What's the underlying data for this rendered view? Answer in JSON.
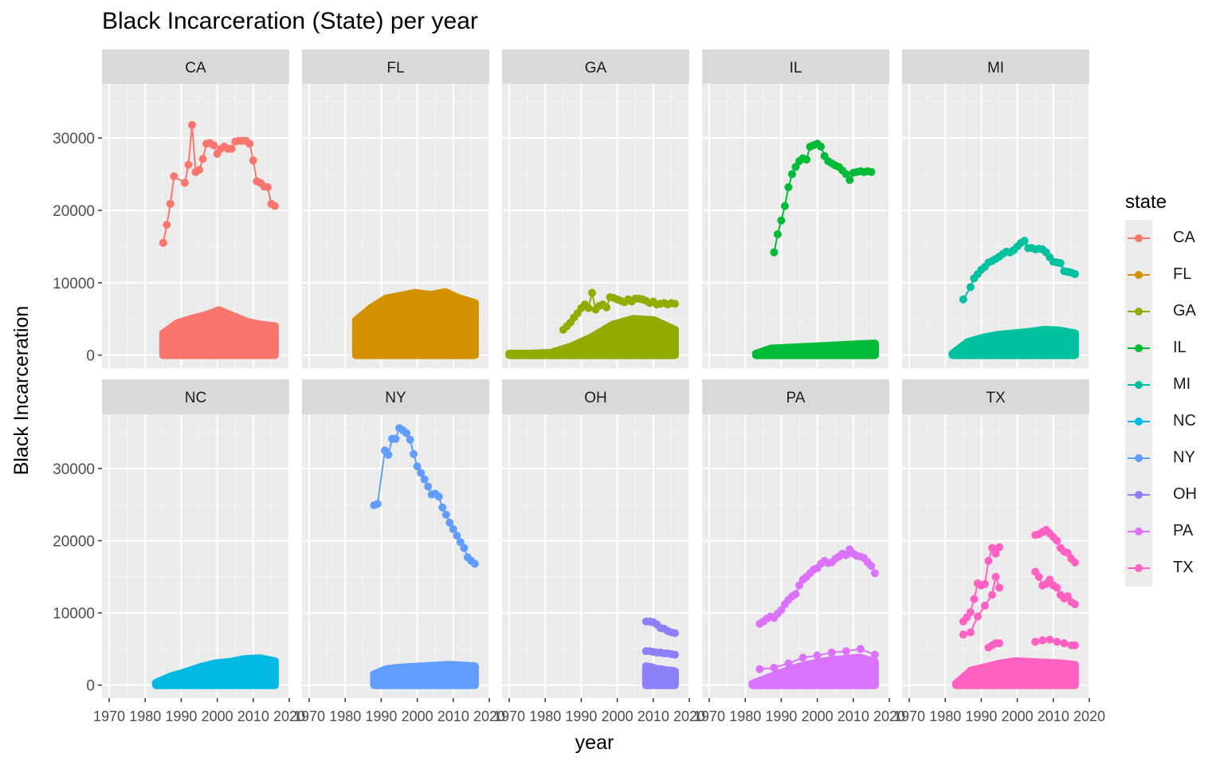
{
  "chart_data": {
    "type": "line",
    "title": "Black Incarceration (State) per year",
    "xlabel": "year",
    "ylabel": "Black Incarceration",
    "xlim": [
      1968,
      2020
    ],
    "ylim": [
      -1800,
      37500
    ],
    "x_ticks": [
      1970,
      1980,
      1990,
      2000,
      2010,
      2020
    ],
    "x_tick_labels": [
      "1970",
      "1980",
      "1990",
      "2000",
      "2010",
      "2020"
    ],
    "y_ticks": [
      0,
      10000,
      20000,
      30000
    ],
    "y_tick_labels": [
      "0",
      "10000",
      "20000",
      "30000"
    ],
    "legend_title": "state",
    "legend_position": "right",
    "panels": [
      "CA",
      "FL",
      "GA",
      "IL",
      "MI",
      "NC",
      "NY",
      "OH",
      "PA",
      "TX"
    ],
    "colors": {
      "CA": "#F8766D",
      "FL": "#D39200",
      "GA": "#93AA00",
      "IL": "#00BA38",
      "MI": "#00C19F",
      "NC": "#00B9E3",
      "NY": "#619CFF",
      "OH": "#8B80F8",
      "PA": "#DB72FB",
      "TX": "#FF61C3"
    },
    "series": [
      {
        "name": "CA",
        "lines": [
          {
            "x": [
              1985,
              1986,
              1987,
              1988,
              1991,
              1992,
              1993,
              1994,
              1995,
              1996,
              1997,
              1998,
              1999,
              2000,
              2001,
              2002,
              2003,
              2004,
              2005,
              2006,
              2007,
              2008,
              2009,
              2010,
              2011,
              2012,
              2013,
              2014,
              2015,
              2016
            ],
            "y": [
              15500,
              18000,
              20900,
              24700,
              23800,
              26300,
              31800,
              25300,
              25600,
              27100,
              29200,
              29300,
              29000,
              27800,
              28500,
              28800,
              28500,
              28500,
              29500,
              29600,
              29600,
              29600,
              29200,
              26900,
              24000,
              23800,
              23300,
              23200,
              20900,
              20600
            ]
          }
        ],
        "band": {
          "x": [
            1985,
            2016
          ],
          "min": 0,
          "top": [
            3000,
            4400,
            5000,
            5500,
            6200,
            5400,
            4600,
            4200,
            4000
          ]
        }
      },
      {
        "name": "FL",
        "lines": [],
        "band": {
          "x": [
            1983,
            2016
          ],
          "min": 0,
          "top": [
            4800,
            6500,
            7800,
            8200,
            8600,
            8300,
            8700,
            7800,
            7200
          ]
        }
      },
      {
        "name": "GA",
        "lines": [
          {
            "x": [
              1985,
              1986,
              1987,
              1988,
              1989,
              1990,
              1991,
              1992,
              1993,
              1994,
              1995,
              1996,
              1997,
              1998,
              1999,
              2000,
              2001,
              2002,
              2003,
              2004,
              2005,
              2006,
              2007,
              2008,
              2009,
              2010,
              2011,
              2012,
              2013,
              2014,
              2015,
              2016
            ],
            "y": [
              3500,
              4000,
              4500,
              5200,
              5800,
              6500,
              7000,
              6500,
              8600,
              6300,
              6800,
              7000,
              6600,
              8000,
              7900,
              7700,
              7500,
              7300,
              7700,
              7400,
              7800,
              7800,
              7700,
              7500,
              7200,
              7400,
              7000,
              7100,
              7200,
              7000,
              7200,
              7100
            ]
          }
        ],
        "band": {
          "x": [
            1970,
            2016
          ],
          "min": 0,
          "top": [
            200,
            200,
            300,
            1200,
            2500,
            4200,
            5000,
            4800,
            3500
          ]
        }
      },
      {
        "name": "IL",
        "lines": [
          {
            "x": [
              1988,
              1989,
              1990,
              1991,
              1992,
              1993,
              1994,
              1995,
              1996,
              1997,
              1998,
              1999,
              2000,
              2001,
              2002,
              2003,
              2004,
              2005,
              2006,
              2007,
              2008,
              2009,
              2010,
              2011,
              2012,
              2013,
              2014,
              2015
            ],
            "y": [
              14200,
              16700,
              18600,
              20600,
              23200,
              25000,
              26000,
              26800,
              27200,
              27000,
              28800,
              29000,
              29200,
              28800,
              27500,
              26800,
              26500,
              26200,
              26000,
              25500,
              25000,
              24200,
              25200,
              25300,
              25400,
              25300,
              25400,
              25300
            ]
          }
        ],
        "band": {
          "x": [
            1983,
            2016
          ],
          "min": 0,
          "top": [
            200,
            900,
            1000,
            1100,
            1200,
            1300,
            1400,
            1500,
            1600
          ]
        }
      },
      {
        "name": "MI",
        "lines": [
          {
            "x": [
              1985,
              1987,
              1988,
              1989,
              1990,
              1991,
              1992,
              1993,
              1994,
              1995,
              1996,
              1997,
              1998,
              1999,
              2000,
              2001,
              2002,
              2003,
              2004,
              2005,
              2006,
              2007,
              2008,
              2009,
              2010,
              2011,
              2012,
              2013,
              2014,
              2015,
              2016
            ],
            "y": [
              7700,
              9400,
              10600,
              11200,
              11800,
              12200,
              12800,
              13000,
              13300,
              13600,
              14000,
              14300,
              14200,
              14500,
              15000,
              15500,
              15800,
              14800,
              14800,
              14600,
              14700,
              14600,
              14200,
              13500,
              12900,
              12800,
              12700,
              11600,
              11500,
              11400,
              11200
            ]
          }
        ],
        "band": {
          "x": [
            1982,
            2016
          ],
          "min": 0,
          "top": [
            200,
            1800,
            2400,
            2800,
            3000,
            3200,
            3500,
            3400,
            3000
          ]
        }
      },
      {
        "name": "NC",
        "lines": [],
        "band": {
          "x": [
            1983,
            2016
          ],
          "min": 0,
          "top": [
            300,
            1200,
            1800,
            2500,
            3000,
            3200,
            3600,
            3700,
            3300
          ]
        }
      },
      {
        "name": "NY",
        "lines": [
          {
            "x": [
              1988,
              1989,
              1991,
              1992,
              1993,
              1994,
              1995,
              1996,
              1997,
              1998,
              1999,
              2000,
              2001,
              2002,
              2003,
              2004,
              2005,
              2006,
              2007,
              2008,
              2009,
              2010,
              2011,
              2012,
              2013,
              2014,
              2015,
              2016
            ],
            "y": [
              24900,
              25100,
              32500,
              31900,
              34100,
              34100,
              35600,
              35300,
              34900,
              34000,
              32000,
              30300,
              29400,
              28500,
              27500,
              26400,
              26500,
              26100,
              24600,
              23600,
              22500,
              21600,
              20700,
              19800,
              19000,
              17700,
              17200,
              16800
            ]
          }
        ],
        "band": {
          "x": [
            1988,
            2016
          ],
          "min": 0,
          "top": [
            1500,
            2200,
            2400,
            2500,
            2600,
            2700,
            2800,
            2700,
            2600
          ]
        }
      },
      {
        "name": "OH",
        "lines": [
          {
            "x": [
              2008,
              2009,
              2010,
              2011,
              2012,
              2013,
              2014,
              2015,
              2016
            ],
            "y": [
              8800,
              8800,
              8700,
              8400,
              7900,
              7800,
              7500,
              7300,
              7200
            ]
          },
          {
            "x": [
              2008,
              2009,
              2010,
              2011,
              2012,
              2013,
              2014,
              2015,
              2016
            ],
            "y": [
              4700,
              4700,
              4600,
              4500,
              4500,
              4400,
              4400,
              4300,
              4200
            ]
          }
        ],
        "band": {
          "x": [
            2008,
            2016
          ],
          "min": 0,
          "top": [
            2600,
            2500,
            2400,
            2200,
            2200,
            2100,
            2000,
            2000,
            1900
          ]
        }
      },
      {
        "name": "PA",
        "lines": [
          {
            "x": [
              1984,
              1985,
              1986,
              1987,
              1988,
              1989,
              1990,
              1991,
              1992,
              1993,
              1994,
              1995,
              1996,
              1997,
              1998,
              1999,
              2000,
              2001,
              2002,
              2003,
              2004,
              2005,
              2006,
              2007,
              2008,
              2009,
              2010,
              2011,
              2012,
              2013,
              2014,
              2015,
              2016
            ],
            "y": [
              8500,
              8800,
              9200,
              9500,
              9300,
              9900,
              10400,
              11200,
              11800,
              12300,
              12600,
              13800,
              14600,
              15000,
              15500,
              16000,
              16200,
              16800,
              17200,
              16900,
              17000,
              17500,
              17800,
              18200,
              18000,
              18800,
              18200,
              17900,
              17800,
              17600,
              17000,
              16500,
              15500
            ]
          },
          {
            "x": [
              1984,
              1988,
              1992,
              1996,
              2000,
              2004,
              2008,
              2012,
              2016
            ],
            "y": [
              2200,
              2400,
              3000,
              3800,
              4100,
              4500,
              4700,
              5000,
              4200
            ]
          }
        ],
        "band": {
          "x": [
            1982,
            2016
          ],
          "min": 0,
          "top": [
            200,
            1000,
            1800,
            2500,
            3000,
            3400,
            3600,
            3800,
            3200
          ]
        }
      },
      {
        "name": "TX",
        "lines": [
          {
            "x": [
              1985,
              1986,
              1987,
              1988,
              1989,
              1990,
              1991,
              1992,
              1993,
              1994,
              1995
            ],
            "y": [
              8800,
              9400,
              10100,
              11900,
              14100,
              13800,
              14000,
              17200,
              19000,
              18200,
              19100
            ]
          },
          {
            "x": [
              1985,
              1987,
              1989,
              1991,
              1993,
              1994,
              1995
            ],
            "y": [
              7000,
              7300,
              9500,
              11000,
              12500,
              15000,
              13500
            ]
          },
          {
            "x": [
              2005,
              2006,
              2007,
              2008,
              2009,
              2010,
              2011,
              2012,
              2013,
              2014,
              2015,
              2016
            ],
            "y": [
              20800,
              20900,
              21200,
              21500,
              21000,
              20500,
              20000,
              19000,
              18500,
              18300,
              17500,
              17000
            ]
          },
          {
            "x": [
              2005,
              2006,
              2007,
              2008,
              2009,
              2010,
              2011,
              2012,
              2013,
              2014,
              2015,
              2016
            ],
            "y": [
              15700,
              15000,
              13800,
              14000,
              14600,
              13800,
              13500,
              12500,
              12000,
              12300,
              11500,
              11200
            ]
          },
          {
            "x": [
              1992,
              1993,
              1994,
              1995
            ],
            "y": [
              5200,
              5500,
              5800,
              5800
            ]
          },
          {
            "x": [
              2005,
              2007,
              2009,
              2011,
              2013,
              2015,
              2016
            ],
            "y": [
              6000,
              6200,
              6300,
              6000,
              5800,
              5500,
              5500
            ]
          }
        ],
        "band": {
          "x": [
            1983,
            2016
          ],
          "min": 0,
          "top": [
            200,
            2000,
            2500,
            3000,
            3300,
            3200,
            3100,
            3000,
            2800
          ]
        }
      }
    ]
  }
}
